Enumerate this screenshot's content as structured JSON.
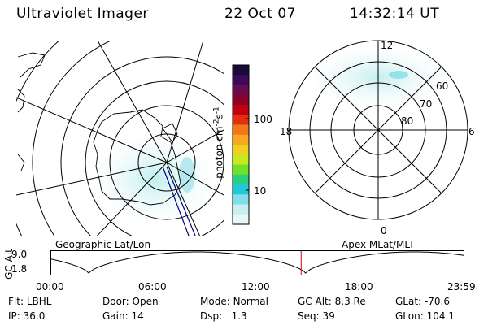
{
  "header": {
    "title": "Ultraviolet Imager",
    "date": "22 Oct 07",
    "time": "14:32:14 UT"
  },
  "left_panel": {
    "label": "Geographic Lat/Lon"
  },
  "colorbar": {
    "unit_label": "photon cm",
    "unit_sup1": "-2",
    "unit_s": "s",
    "unit_sup2": "-1",
    "tick_100": "100",
    "tick_10": "10",
    "colors": [
      "#1a0a3a",
      "#3c0a5a",
      "#6a0a50",
      "#8a0028",
      "#c00010",
      "#e03010",
      "#f07818",
      "#f8a820",
      "#f0d020",
      "#c8e820",
      "#70e028",
      "#28d080",
      "#20c8d8",
      "#80e0e8",
      "#c8f0f0",
      "#e8f8f8"
    ]
  },
  "right_panel": {
    "label": "Apex MLat/MLT",
    "mlt_12": "12",
    "mlt_18": "18",
    "mlt_6": "6",
    "mlt_0": "0",
    "lat_60": "60",
    "lat_70": "70",
    "lat_80": "80"
  },
  "orbit_plot": {
    "ylabel": "GC Alt",
    "ytick_top": "9.0",
    "ytick_bottom": "1.8",
    "xticks": [
      "00:00",
      "06:00",
      "12:00",
      "18:00",
      "23:59"
    ],
    "marker_time_hours": 14.54,
    "marker_color": "#e00000"
  },
  "footer": {
    "row1": [
      {
        "key": "Flt:",
        "value": "LBHL"
      },
      {
        "key": "Door:",
        "value": "Open"
      },
      {
        "key": "Mode:",
        "value": "Normal"
      },
      {
        "key": "GC Alt:",
        "value": "8.3 Re"
      },
      {
        "key": "GLat:",
        "value": "-70.6"
      }
    ],
    "row2": [
      {
        "key": "IP:",
        "value": "36.0"
      },
      {
        "key": "Gain:",
        "value": "14"
      },
      {
        "key": "Dsp:",
        "value": "1.3"
      },
      {
        "key": "Seq:",
        "value": "39"
      },
      {
        "key": "GLon:",
        "value": "104.1"
      }
    ]
  }
}
